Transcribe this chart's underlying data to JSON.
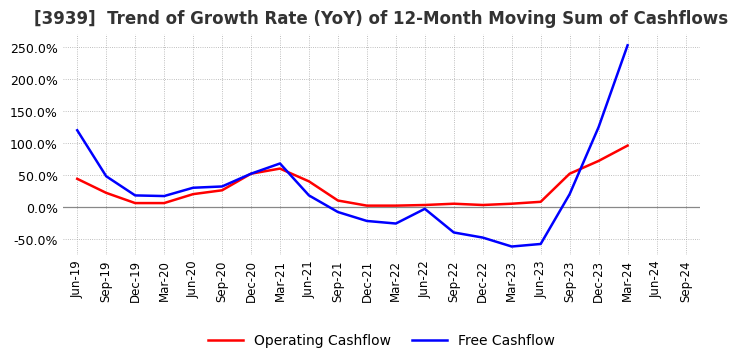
{
  "title": "[3939]  Trend of Growth Rate (YoY) of 12-Month Moving Sum of Cashflows",
  "ylim": [
    -75,
    270
  ],
  "yticks": [
    -50.0,
    0.0,
    50.0,
    100.0,
    150.0,
    200.0,
    250.0
  ],
  "background_color": "#ffffff",
  "grid_color": "#aaaaaa",
  "x_labels": [
    "Jun-19",
    "Sep-19",
    "Dec-19",
    "Mar-20",
    "Jun-20",
    "Sep-20",
    "Dec-20",
    "Mar-21",
    "Jun-21",
    "Sep-21",
    "Dec-21",
    "Mar-22",
    "Jun-22",
    "Sep-22",
    "Dec-22",
    "Mar-23",
    "Jun-23",
    "Sep-23",
    "Dec-23",
    "Mar-24",
    "Jun-24",
    "Sep-24"
  ],
  "operating_cashflow": [
    44.0,
    22.0,
    6.0,
    6.0,
    20.0,
    26.0,
    52.0,
    60.0,
    40.0,
    10.0,
    2.0,
    2.0,
    3.0,
    5.0,
    3.0,
    5.0,
    8.0,
    52.0,
    72.0,
    96.0,
    null,
    null
  ],
  "free_cashflow": [
    120.0,
    48.0,
    18.0,
    17.0,
    30.0,
    32.0,
    52.0,
    68.0,
    18.0,
    -8.0,
    -22.0,
    -26.0,
    -3.0,
    -40.0,
    -48.0,
    -62.0,
    -58.0,
    20.0,
    125.0,
    253.0,
    null,
    null
  ],
  "operating_color": "#ff0000",
  "free_color": "#0000ff",
  "line_width": 1.8,
  "title_fontsize": 12,
  "tick_fontsize": 9,
  "legend_fontsize": 10
}
